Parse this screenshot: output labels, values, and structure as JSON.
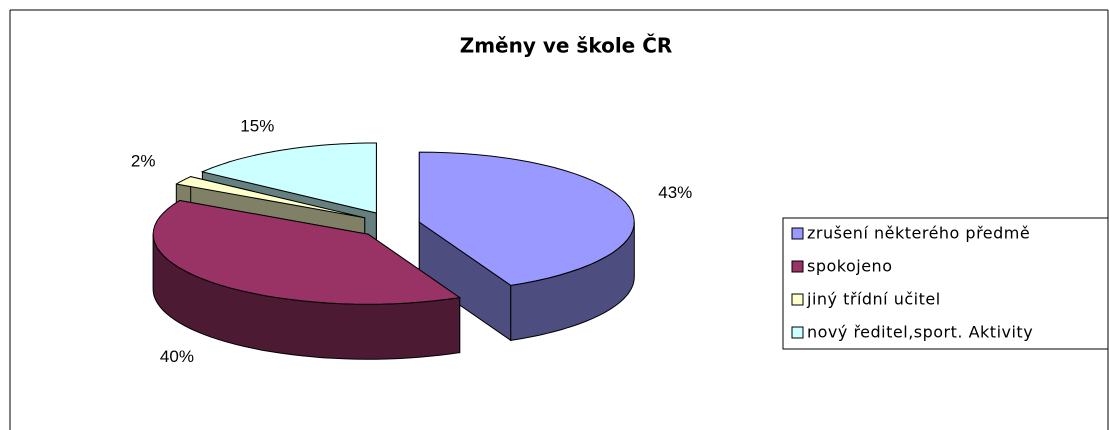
{
  "chart_data": {
    "type": "pie",
    "title": "Změny ve škole ČR",
    "categories": [
      "zrušení některého předmě",
      "spokojeno",
      "jiný třídní učitel",
      "nový ředitel,sport. Aktivity"
    ],
    "values": [
      43,
      40,
      2,
      15
    ],
    "value_labels": [
      "43%",
      "40%",
      "2%",
      "15%"
    ],
    "colors": [
      "#9999ff",
      "#993366",
      "#ffffcc",
      "#ccffff"
    ],
    "legend": "right"
  }
}
